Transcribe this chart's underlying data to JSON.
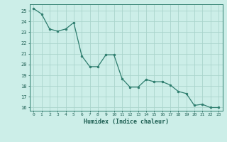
{
  "x": [
    0,
    1,
    2,
    3,
    4,
    5,
    6,
    7,
    8,
    9,
    10,
    11,
    12,
    13,
    14,
    15,
    16,
    17,
    18,
    19,
    20,
    21,
    22,
    23
  ],
  "y": [
    25.2,
    24.7,
    23.3,
    23.1,
    23.3,
    23.9,
    20.8,
    19.8,
    19.8,
    20.9,
    20.9,
    18.7,
    17.9,
    17.9,
    18.6,
    18.4,
    18.4,
    18.1,
    17.5,
    17.3,
    16.2,
    16.3,
    16.0,
    16.0
  ],
  "xlabel": "Humidex (Indice chaleur)",
  "ylim": [
    15.7,
    25.6
  ],
  "xlim": [
    -0.5,
    23.5
  ],
  "yticks": [
    16,
    17,
    18,
    19,
    20,
    21,
    22,
    23,
    24,
    25
  ],
  "xticks": [
    0,
    1,
    2,
    3,
    4,
    5,
    6,
    7,
    8,
    9,
    10,
    11,
    12,
    13,
    14,
    15,
    16,
    17,
    18,
    19,
    20,
    21,
    22,
    23
  ],
  "line_color": "#2e7d6e",
  "marker_color": "#2e7d6e",
  "bg_color": "#cceee8",
  "grid_color": "#aad4cc",
  "axis_color": "#2e7d6e",
  "tick_label_color": "#1a5c50",
  "xlabel_color": "#1a5c50"
}
